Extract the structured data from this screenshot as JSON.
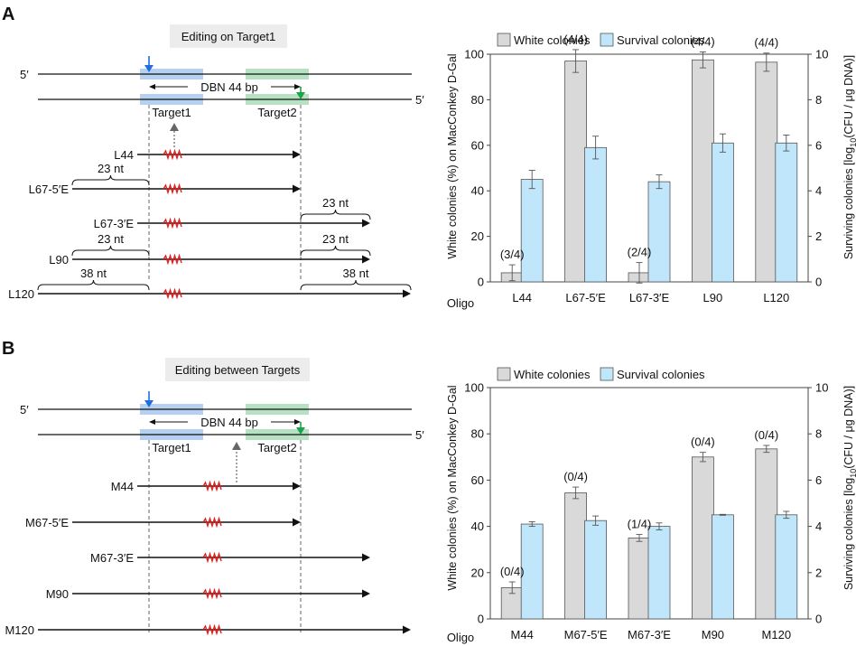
{
  "panel_a": {
    "letter": "A",
    "box_title": "Editing on Target1",
    "strand_5_top": "5′",
    "strand_5_bottom": "5′",
    "dbn_label": "DBN 44 bp",
    "target1_label": "Target1",
    "target2_label": "Target2",
    "oligos": [
      {
        "name": "L44"
      },
      {
        "name": "L67-5′E",
        "left_ext": "23 nt"
      },
      {
        "name": "L67-3′E",
        "right_ext": "23 nt"
      },
      {
        "name": "L90",
        "left_ext": "23 nt",
        "right_ext": "23 nt"
      },
      {
        "name": "L120",
        "left_ext": "38 nt",
        "right_ext": "38 nt"
      }
    ]
  },
  "panel_b": {
    "letter": "B",
    "box_title": "Editing between Targets",
    "strand_5_top": "5′",
    "strand_5_bottom": "5′",
    "dbn_label": "DBN 44 bp",
    "target1_label": "Target1",
    "target2_label": "Target2",
    "oligos": [
      {
        "name": "M44"
      },
      {
        "name": "M67-5′E"
      },
      {
        "name": "M67-3′E"
      },
      {
        "name": "M90"
      },
      {
        "name": "M120"
      }
    ]
  },
  "colors": {
    "white_bar": "#d9d9d9",
    "survival_bar": "#bfe6fa",
    "target1": "#a8c8ef",
    "target2": "#a9ddb8",
    "blue_arrow": "#1f6fe0",
    "green_arrow": "#1da34a",
    "mismatch": "#e02020"
  },
  "chart_data": [
    {
      "type": "bar",
      "panel": "A",
      "legend": [
        "White colonies",
        "Survival colonies"
      ],
      "xlabel": "Oligo",
      "categories": [
        "L44",
        "L67-5′E",
        "L67-3′E",
        "L90",
        "L120"
      ],
      "ylabel_left": "White colonies (%) on MacConkey D-Gal",
      "ylabel_right_pre": "Surviving colonies [log",
      "ylabel_right_sub": "10",
      "ylabel_right_post": "(CFU / μg DNA)]",
      "ylim_left": [
        0,
        100
      ],
      "ylim_right": [
        0,
        10
      ],
      "left_ticks": [
        "0",
        "20",
        "40",
        "60",
        "80",
        "100"
      ],
      "right_ticks": [
        "0",
        "2",
        "4",
        "6",
        "8",
        "10"
      ],
      "series": [
        {
          "name": "White colonies",
          "axis": "left",
          "values": [
            4,
            97,
            4,
            97.5,
            96.5
          ],
          "errors": [
            3.5,
            5,
            4.5,
            3.5,
            4
          ],
          "labels": [
            "(3/4)",
            "(4/4)",
            "(2/4)",
            "(4/4)",
            "(4/4)"
          ]
        },
        {
          "name": "Survival colonies",
          "axis": "right",
          "values": [
            4.5,
            5.9,
            4.4,
            6.1,
            6.1
          ],
          "errors": [
            0.4,
            0.5,
            0.3,
            0.4,
            0.35
          ]
        }
      ]
    },
    {
      "type": "bar",
      "panel": "B",
      "legend": [
        "White colonies",
        "Survival colonies"
      ],
      "xlabel": "Oligo",
      "categories": [
        "M44",
        "M67-5′E",
        "M67-3′E",
        "M90",
        "M120"
      ],
      "ylabel_left": "White colonies (%) on MacConkey D-Gal",
      "ylabel_right_pre": "Surviving colonies [log",
      "ylabel_right_sub": "10",
      "ylabel_right_post": "(CFU / μg DNA)]",
      "ylim_left": [
        0,
        100
      ],
      "ylim_right": [
        0,
        10
      ],
      "left_ticks": [
        "0",
        "20",
        "40",
        "60",
        "80",
        "100"
      ],
      "right_ticks": [
        "0",
        "2",
        "4",
        "6",
        "8",
        "10"
      ],
      "series": [
        {
          "name": "White colonies",
          "axis": "left",
          "values": [
            13.5,
            54.5,
            35,
            70,
            73.5
          ],
          "errors": [
            2.5,
            2.5,
            1.5,
            2,
            1.5
          ],
          "labels": [
            "(0/4)",
            "(0/4)",
            "(1/4)",
            "(0/4)",
            "(0/4)"
          ]
        },
        {
          "name": "Survival colonies",
          "axis": "right",
          "values": [
            4.1,
            4.25,
            4.0,
            4.5,
            4.5
          ],
          "errors": [
            0.1,
            0.2,
            0.15,
            0.02,
            0.15
          ]
        }
      ]
    }
  ]
}
